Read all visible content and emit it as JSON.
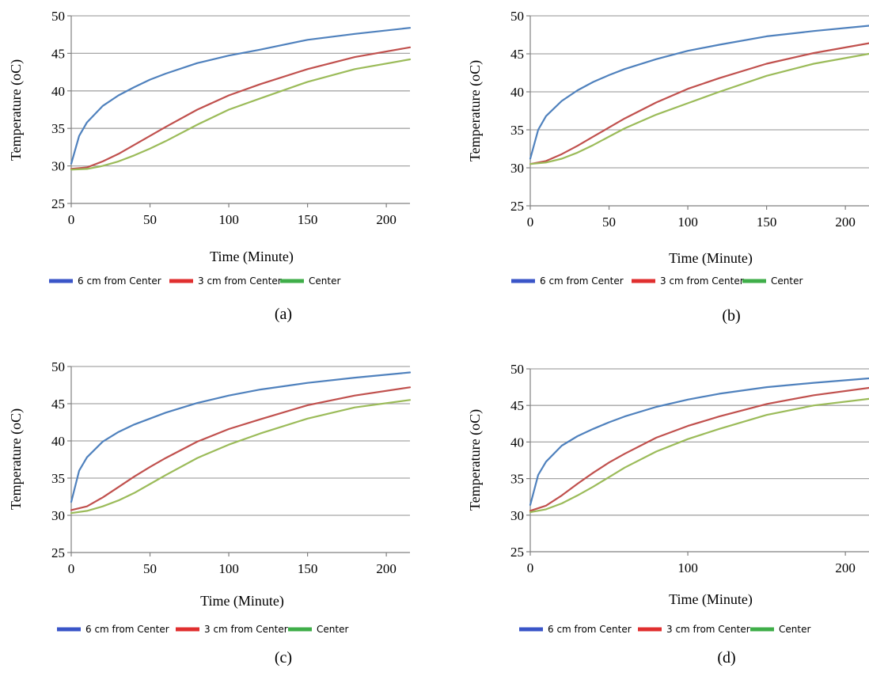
{
  "colors": {
    "grid": "#a6a6a6",
    "legend_blue": "#3a55c8",
    "legend_red": "#e02f2f",
    "legend_green": "#3fae49"
  },
  "chart_data": [
    {
      "type": "line",
      "caption": "(a)",
      "xlabel": "Time (Minute)",
      "ylabel": "Temperature (oC)",
      "xlim": [
        0,
        215
      ],
      "ylim": [
        25,
        50
      ],
      "xticks": [
        0,
        50,
        100,
        150,
        200
      ],
      "yticks": [
        25,
        30,
        35,
        40,
        45,
        50
      ],
      "grid": "horizontal",
      "legend": "bottom",
      "series": [
        {
          "name": "6 cm from Center",
          "color": "#4f81bd",
          "legend_color": "#3a55c8",
          "x": [
            0,
            5,
            10,
            20,
            30,
            40,
            50,
            60,
            80,
            100,
            120,
            150,
            180,
            215
          ],
          "y": [
            30.3,
            34.0,
            35.8,
            38.0,
            39.4,
            40.5,
            41.5,
            42.3,
            43.7,
            44.7,
            45.5,
            46.8,
            47.6,
            48.4
          ]
        },
        {
          "name": "3 cm from Center",
          "color": "#c0504d",
          "legend_color": "#e02f2f",
          "x": [
            0,
            10,
            20,
            30,
            40,
            50,
            60,
            80,
            100,
            120,
            150,
            180,
            215
          ],
          "y": [
            29.6,
            29.8,
            30.6,
            31.6,
            32.8,
            34.0,
            35.2,
            37.5,
            39.4,
            40.9,
            42.9,
            44.5,
            45.8
          ]
        },
        {
          "name": "Center",
          "color": "#9bbb59",
          "legend_color": "#3fae49",
          "x": [
            0,
            10,
            20,
            30,
            40,
            50,
            60,
            80,
            100,
            120,
            150,
            180,
            215
          ],
          "y": [
            29.5,
            29.6,
            30.0,
            30.6,
            31.4,
            32.3,
            33.3,
            35.5,
            37.5,
            39.0,
            41.2,
            42.9,
            44.2
          ]
        }
      ]
    },
    {
      "type": "line",
      "caption": "(b)",
      "xlabel": "Time (Minute)",
      "ylabel": "Temperature (oC)",
      "xlim": [
        0,
        215
      ],
      "ylim": [
        25,
        50
      ],
      "xticks": [
        0,
        50,
        100,
        150,
        200
      ],
      "yticks": [
        25,
        30,
        35,
        40,
        45,
        50
      ],
      "grid": "horizontal",
      "legend": "bottom",
      "series": [
        {
          "name": "6 cm from Center",
          "color": "#4f81bd",
          "legend_color": "#3a55c8",
          "x": [
            0,
            5,
            10,
            20,
            30,
            40,
            50,
            60,
            80,
            100,
            120,
            150,
            180,
            215
          ],
          "y": [
            31.2,
            35.0,
            36.8,
            38.8,
            40.2,
            41.3,
            42.2,
            43.0,
            44.3,
            45.4,
            46.2,
            47.3,
            48.0,
            48.7
          ]
        },
        {
          "name": "3 cm from Center",
          "color": "#c0504d",
          "legend_color": "#e02f2f",
          "x": [
            0,
            10,
            20,
            30,
            40,
            50,
            60,
            80,
            100,
            120,
            150,
            180,
            215
          ],
          "y": [
            30.5,
            30.9,
            31.8,
            32.9,
            34.1,
            35.3,
            36.5,
            38.6,
            40.4,
            41.8,
            43.7,
            45.1,
            46.4
          ]
        },
        {
          "name": "Center",
          "color": "#9bbb59",
          "legend_color": "#3fae49",
          "x": [
            0,
            10,
            20,
            30,
            40,
            50,
            60,
            80,
            100,
            120,
            150,
            180,
            215
          ],
          "y": [
            30.5,
            30.7,
            31.2,
            32.0,
            33.0,
            34.1,
            35.2,
            37.0,
            38.5,
            40.0,
            42.1,
            43.7,
            45.0
          ]
        }
      ]
    },
    {
      "type": "line",
      "caption": "(c)",
      "xlabel": "Time (Minute)",
      "ylabel": "Temperature (oC)",
      "xlim": [
        0,
        215
      ],
      "ylim": [
        25,
        50
      ],
      "xticks": [
        0,
        50,
        100,
        150,
        200
      ],
      "yticks": [
        25,
        30,
        35,
        40,
        45,
        50
      ],
      "grid": "horizontal",
      "legend": "bottom",
      "series": [
        {
          "name": "6 cm from Center",
          "color": "#4f81bd",
          "legend_color": "#3a55c8",
          "x": [
            0,
            5,
            10,
            20,
            30,
            40,
            50,
            60,
            80,
            100,
            120,
            150,
            180,
            215
          ],
          "y": [
            31.8,
            36.0,
            37.8,
            39.9,
            41.2,
            42.2,
            43.0,
            43.8,
            45.1,
            46.1,
            46.9,
            47.8,
            48.5,
            49.2
          ]
        },
        {
          "name": "3 cm from Center",
          "color": "#c0504d",
          "legend_color": "#e02f2f",
          "x": [
            0,
            10,
            20,
            30,
            40,
            50,
            60,
            80,
            100,
            120,
            150,
            180,
            215
          ],
          "y": [
            30.7,
            31.2,
            32.4,
            33.8,
            35.2,
            36.5,
            37.7,
            39.9,
            41.6,
            42.9,
            44.8,
            46.1,
            47.2
          ]
        },
        {
          "name": "Center",
          "color": "#9bbb59",
          "legend_color": "#3fae49",
          "x": [
            0,
            10,
            20,
            30,
            40,
            50,
            60,
            80,
            100,
            120,
            150,
            180,
            215
          ],
          "y": [
            30.3,
            30.6,
            31.2,
            32.0,
            33.0,
            34.2,
            35.4,
            37.7,
            39.5,
            41.0,
            43.0,
            44.5,
            45.5
          ]
        }
      ]
    },
    {
      "type": "line",
      "caption": "(d)",
      "xlabel": "Time (Minute)",
      "ylabel": "Temperature (oC)",
      "xlim": [
        0,
        215
      ],
      "ylim": [
        25,
        50
      ],
      "xticks": [
        0,
        100,
        200
      ],
      "yticks": [
        25,
        30,
        35,
        40,
        45,
        50
      ],
      "grid": "horizontal",
      "legend": "bottom",
      "series": [
        {
          "name": "6 cm from Center",
          "color": "#4f81bd",
          "legend_color": "#3a55c8",
          "x": [
            0,
            5,
            10,
            20,
            30,
            40,
            50,
            60,
            80,
            100,
            120,
            150,
            180,
            215
          ],
          "y": [
            31.4,
            35.5,
            37.3,
            39.5,
            40.8,
            41.8,
            42.7,
            43.5,
            44.8,
            45.8,
            46.6,
            47.5,
            48.1,
            48.7
          ]
        },
        {
          "name": "3 cm from Center",
          "color": "#c0504d",
          "legend_color": "#e02f2f",
          "x": [
            0,
            10,
            20,
            30,
            40,
            50,
            60,
            80,
            100,
            120,
            150,
            180,
            215
          ],
          "y": [
            30.6,
            31.3,
            32.7,
            34.3,
            35.8,
            37.2,
            38.4,
            40.6,
            42.2,
            43.5,
            45.2,
            46.4,
            47.4
          ]
        },
        {
          "name": "Center",
          "color": "#9bbb59",
          "legend_color": "#3fae49",
          "x": [
            0,
            10,
            20,
            30,
            40,
            50,
            60,
            80,
            100,
            120,
            150,
            180,
            215
          ],
          "y": [
            30.4,
            30.8,
            31.6,
            32.7,
            33.9,
            35.2,
            36.5,
            38.7,
            40.4,
            41.8,
            43.7,
            45.0,
            45.9
          ]
        }
      ]
    }
  ]
}
